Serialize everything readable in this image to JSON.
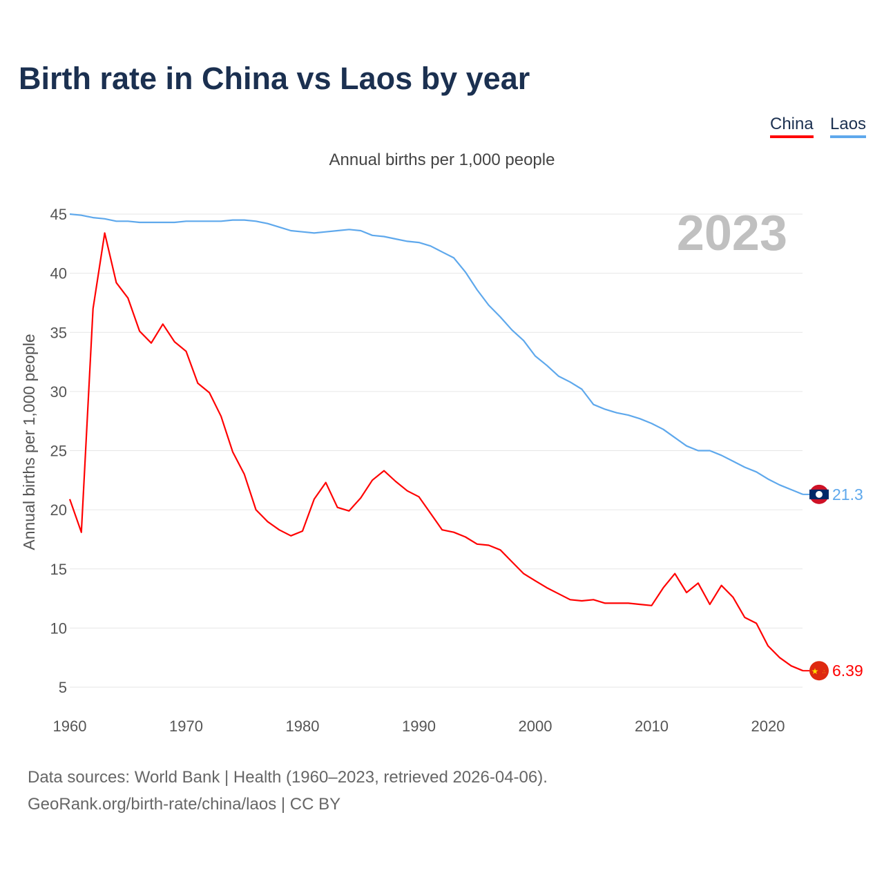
{
  "title": "Birth rate in China vs Laos by year",
  "subtitle": "Annual births per 1,000 people",
  "legend": [
    {
      "label": "China",
      "color": "#ff0000"
    },
    {
      "label": "Laos",
      "color": "#5ea8ec"
    }
  ],
  "year_watermark": "2023",
  "footer": {
    "line1": "Data sources: World Bank | Health (1960–2023, retrieved 2026-04-06).",
    "line2": "GeoRank.org/birth-rate/china/laos | CC BY"
  },
  "chart_data": {
    "type": "line",
    "title": "Birth rate in China vs Laos by year",
    "xlabel": "",
    "ylabel": "Annual births per 1,000 people",
    "xlim": [
      1960,
      2023
    ],
    "ylim": [
      5,
      45
    ],
    "xticks": [
      "1960",
      "1970",
      "1980",
      "1990",
      "2000",
      "2010",
      "2020"
    ],
    "yticks": [
      "5",
      "10",
      "15",
      "20",
      "25",
      "30",
      "35",
      "40",
      "45"
    ],
    "grid": true,
    "legend_position": "top-right",
    "x_start": 1960,
    "series": [
      {
        "name": "China",
        "color": "#ff0000",
        "end_label": "6.39",
        "values": [
          20.9,
          18.1,
          37.0,
          43.4,
          39.2,
          37.9,
          35.1,
          34.1,
          35.7,
          34.2,
          33.4,
          30.7,
          29.9,
          27.9,
          24.9,
          23.0,
          20.0,
          19.0,
          18.3,
          17.8,
          18.2,
          20.9,
          22.3,
          20.2,
          19.9,
          21.0,
          22.5,
          23.3,
          22.4,
          21.6,
          21.1,
          19.7,
          18.3,
          18.1,
          17.7,
          17.1,
          17.0,
          16.6,
          15.6,
          14.6,
          14.0,
          13.4,
          12.9,
          12.4,
          12.3,
          12.4,
          12.1,
          12.1,
          12.1,
          12.0,
          11.9,
          13.4,
          14.6,
          13.0,
          13.8,
          12.0,
          13.6,
          12.6,
          10.9,
          10.4,
          8.5,
          7.5,
          6.8,
          6.39
        ]
      },
      {
        "name": "Laos",
        "color": "#5ea8ec",
        "end_label": "21.3",
        "values": [
          45.0,
          44.9,
          44.7,
          44.6,
          44.4,
          44.4,
          44.3,
          44.3,
          44.3,
          44.3,
          44.4,
          44.4,
          44.4,
          44.4,
          44.5,
          44.5,
          44.4,
          44.2,
          43.9,
          43.6,
          43.5,
          43.4,
          43.5,
          43.6,
          43.7,
          43.6,
          43.2,
          43.1,
          42.9,
          42.7,
          42.6,
          42.3,
          41.8,
          41.3,
          40.1,
          38.6,
          37.3,
          36.3,
          35.2,
          34.3,
          33.0,
          32.2,
          31.3,
          30.8,
          30.2,
          28.9,
          28.5,
          28.2,
          28.0,
          27.7,
          27.3,
          26.8,
          26.1,
          25.4,
          25.0,
          25.0,
          24.6,
          24.1,
          23.6,
          23.2,
          22.6,
          22.1,
          21.7,
          21.3
        ]
      }
    ]
  }
}
